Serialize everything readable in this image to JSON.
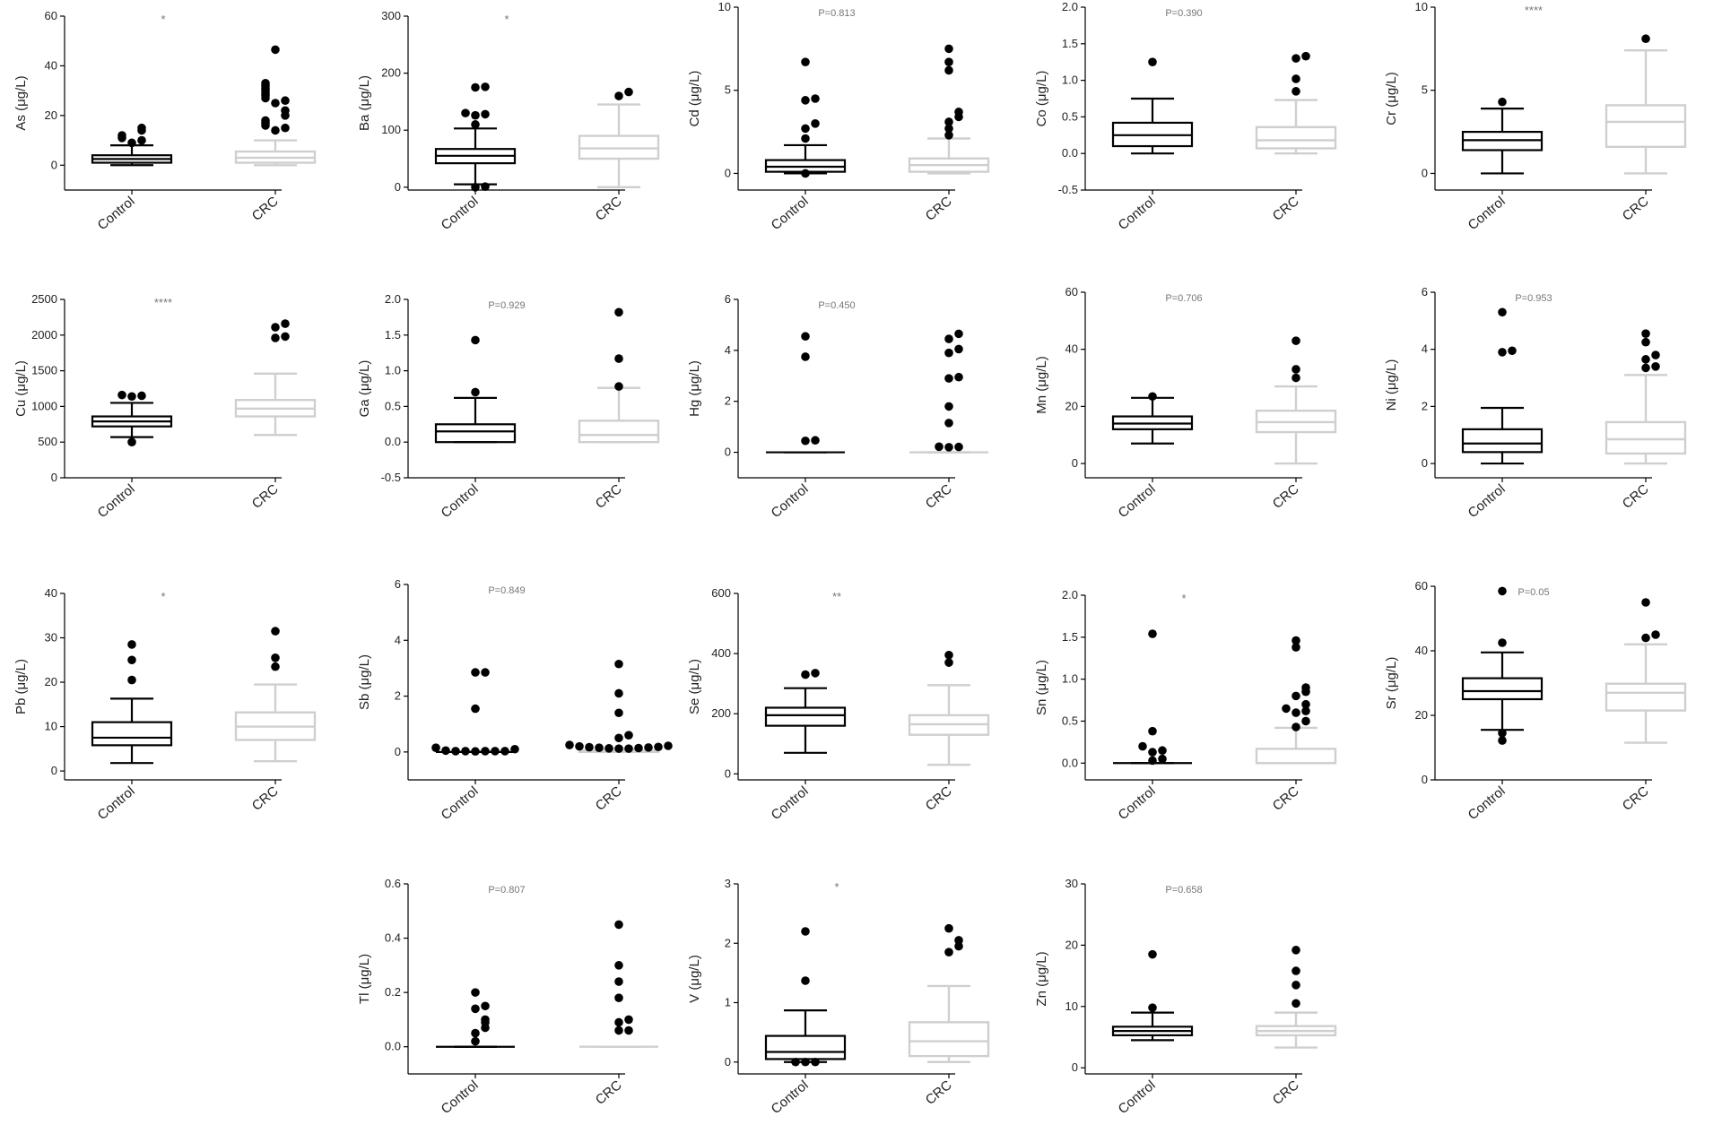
{
  "colors": {
    "control": "#000000",
    "crc": "#cfcfcf",
    "point": "#000000",
    "annotation": "#777777"
  },
  "categories": [
    "Control",
    "CRC"
  ],
  "chart_data": [
    {
      "type": "box",
      "ylabel": "As (μg/L)",
      "annotation": "*",
      "ylim": [
        -10,
        60
      ],
      "yticks": [
        0,
        20,
        40,
        60
      ],
      "boxes": [
        {
          "whisker_low": 0,
          "q1": 1,
          "median": 2.5,
          "q3": 4,
          "whisker_high": 8,
          "outliers": [
            9,
            10,
            11,
            12,
            14,
            15
          ]
        },
        {
          "whisker_low": 0,
          "q1": 1,
          "median": 3,
          "q3": 5.5,
          "whisker_high": 10,
          "outliers": [
            14,
            15,
            16,
            17,
            18,
            20,
            22,
            25,
            26,
            27,
            28,
            29,
            30,
            31,
            32,
            33,
            46.5
          ]
        }
      ]
    },
    {
      "type": "box",
      "ylabel": "Ba (μg/L)",
      "annotation": "*",
      "ylim": [
        -5,
        300
      ],
      "yticks": [
        0,
        100,
        200,
        300
      ],
      "boxes": [
        {
          "whisker_low": 5,
          "q1": 42,
          "median": 55,
          "q3": 67,
          "whisker_high": 103,
          "outliers": [
            0,
            1,
            110,
            126,
            128,
            130,
            175,
            176
          ]
        },
        {
          "whisker_low": 0,
          "q1": 50,
          "median": 68,
          "q3": 90,
          "whisker_high": 145,
          "outliers": [
            160,
            167
          ]
        }
      ]
    },
    {
      "type": "box",
      "ylabel": "Cd (μg/L)",
      "annotation": "P=0.813",
      "ylim": [
        -1,
        10
      ],
      "yticks": [
        0,
        5,
        10
      ],
      "boxes": [
        {
          "whisker_low": 0,
          "q1": 0.1,
          "median": 0.4,
          "q3": 0.8,
          "whisker_high": 1.7,
          "outliers": [
            0,
            2.1,
            2.7,
            3.0,
            4.4,
            4.5,
            6.7
          ]
        },
        {
          "whisker_low": 0,
          "q1": 0.1,
          "median": 0.5,
          "q3": 0.9,
          "whisker_high": 2.1,
          "outliers": [
            2.3,
            2.7,
            3.1,
            3.4,
            3.7,
            6.2,
            6.7,
            7.5
          ]
        }
      ]
    },
    {
      "type": "box",
      "ylabel": "Co (μg/L)",
      "annotation": "P=0.390",
      "ylim": [
        -0.5,
        2.0
      ],
      "yticks": [
        -0.5,
        0.0,
        0.5,
        1.0,
        1.5,
        2.0
      ],
      "boxes": [
        {
          "whisker_low": 0,
          "q1": 0.1,
          "median": 0.25,
          "q3": 0.42,
          "whisker_high": 0.75,
          "outliers": [
            1.25
          ]
        },
        {
          "whisker_low": 0,
          "q1": 0.07,
          "median": 0.18,
          "q3": 0.36,
          "whisker_high": 0.73,
          "outliers": [
            0.85,
            1.02,
            1.3,
            1.33
          ]
        }
      ]
    },
    {
      "type": "box",
      "ylabel": "Cr (μg/L)",
      "annotation": "****",
      "ylim": [
        -1,
        10
      ],
      "yticks": [
        0,
        5,
        10
      ],
      "boxes": [
        {
          "whisker_low": 0,
          "q1": 1.4,
          "median": 2.0,
          "q3": 2.5,
          "whisker_high": 3.9,
          "outliers": [
            4.3
          ]
        },
        {
          "whisker_low": 0,
          "q1": 1.6,
          "median": 3.1,
          "q3": 4.1,
          "whisker_high": 7.4,
          "outliers": [
            8.1
          ]
        }
      ]
    },
    {
      "type": "box",
      "ylabel": "Cu (μg/L)",
      "annotation": "****",
      "ylim": [
        0,
        2500
      ],
      "yticks": [
        0,
        500,
        1000,
        1500,
        2000,
        2500
      ],
      "boxes": [
        {
          "whisker_low": 570,
          "q1": 720,
          "median": 790,
          "q3": 860,
          "whisker_high": 1050,
          "outliers": [
            500,
            1140,
            1150,
            1160
          ]
        },
        {
          "whisker_low": 600,
          "q1": 860,
          "median": 970,
          "q3": 1090,
          "whisker_high": 1460,
          "outliers": [
            1960,
            1980,
            2110,
            2160
          ]
        }
      ]
    },
    {
      "type": "box",
      "ylabel": "Ga (μg/L)",
      "annotation": "P=0.929",
      "ylim": [
        -0.5,
        2.0
      ],
      "yticks": [
        -0.5,
        0.0,
        0.5,
        1.0,
        1.5,
        2.0
      ],
      "boxes": [
        {
          "whisker_low": 0,
          "q1": 0,
          "median": 0.15,
          "q3": 0.25,
          "whisker_high": 0.62,
          "outliers": [
            0.7,
            1.43
          ]
        },
        {
          "whisker_low": 0,
          "q1": 0,
          "median": 0.1,
          "q3": 0.3,
          "whisker_high": 0.76,
          "outliers": [
            0.78,
            1.17,
            1.82
          ]
        }
      ]
    },
    {
      "type": "box",
      "ylabel": "Hg (μg/L)",
      "annotation": "P=0.450",
      "ylim": [
        -1,
        6
      ],
      "yticks": [
        0,
        2,
        4,
        6
      ],
      "boxes": [
        {
          "whisker_low": 0,
          "q1": 0,
          "median": 0,
          "q3": 0,
          "whisker_high": 0,
          "outliers": [
            0.45,
            0.47,
            3.75,
            4.55
          ]
        },
        {
          "whisker_low": 0,
          "q1": 0,
          "median": 0,
          "q3": 0,
          "whisker_high": 0,
          "outliers": [
            0.2,
            0.21,
            0.22,
            1.15,
            1.8,
            2.9,
            2.95,
            3.9,
            4.05,
            4.45,
            4.65
          ]
        }
      ]
    },
    {
      "type": "box",
      "ylabel": "Mn (μg/L)",
      "annotation": "P=0.706",
      "ylim": [
        -5,
        60
      ],
      "yticks": [
        0,
        20,
        40,
        60
      ],
      "boxes": [
        {
          "whisker_low": 7,
          "q1": 12,
          "median": 14,
          "q3": 16.5,
          "whisker_high": 23,
          "outliers": [
            23.5
          ]
        },
        {
          "whisker_low": 0,
          "q1": 11,
          "median": 14.5,
          "q3": 18.5,
          "whisker_high": 27,
          "outliers": [
            30,
            33,
            43
          ]
        }
      ]
    },
    {
      "type": "box",
      "ylabel": "Ni (μg/L)",
      "annotation": "P=0.953",
      "ylim": [
        -0.5,
        6
      ],
      "yticks": [
        0,
        2,
        4,
        6
      ],
      "boxes": [
        {
          "whisker_low": 0,
          "q1": 0.4,
          "median": 0.7,
          "q3": 1.2,
          "whisker_high": 1.95,
          "outliers": [
            3.9,
            3.95,
            5.3
          ]
        },
        {
          "whisker_low": 0,
          "q1": 0.35,
          "median": 0.85,
          "q3": 1.45,
          "whisker_high": 3.1,
          "outliers": [
            3.35,
            3.4,
            3.65,
            3.8,
            4.25,
            4.55
          ]
        }
      ]
    },
    {
      "type": "box",
      "ylabel": "Pb (μg/L)",
      "annotation": "*",
      "ylim": [
        -2,
        40
      ],
      "yticks": [
        0,
        10,
        20,
        30,
        40
      ],
      "boxes": [
        {
          "whisker_low": 1.8,
          "q1": 5.8,
          "median": 7.5,
          "q3": 11,
          "whisker_high": 16.3,
          "outliers": [
            20.5,
            25,
            28.5
          ]
        },
        {
          "whisker_low": 2.2,
          "q1": 7,
          "median": 10,
          "q3": 13.2,
          "whisker_high": 19.5,
          "outliers": [
            23.5,
            25.5,
            31.5
          ]
        }
      ]
    },
    {
      "type": "box",
      "ylabel": "Sb (μg/L)",
      "annotation": "P=0.849",
      "ylim": [
        -1,
        6
      ],
      "yticks": [
        0,
        2,
        4,
        6
      ],
      "boxes": [
        {
          "whisker_low": 0,
          "q1": 0,
          "median": 0,
          "q3": 0,
          "whisker_high": 0,
          "outliers": [
            0.02,
            0.03,
            0.03,
            0.03,
            0.03,
            0.03,
            0.05,
            0.1,
            0.15,
            1.55,
            2.85,
            2.85
          ]
        },
        {
          "whisker_low": 0,
          "q1": 0,
          "median": 0,
          "q3": 0.05,
          "whisker_high": 0.1,
          "outliers": [
            0.12,
            0.12,
            0.13,
            0.14,
            0.15,
            0.16,
            0.17,
            0.18,
            0.2,
            0.22,
            0.25,
            0.5,
            0.6,
            1.4,
            2.1,
            3.15
          ]
        }
      ]
    },
    {
      "type": "box",
      "ylabel": "Se (μg/L)",
      "annotation": "**",
      "ylim": [
        -20,
        600
      ],
      "yticks": [
        0,
        200,
        400,
        600
      ],
      "boxes": [
        {
          "whisker_low": 70,
          "q1": 160,
          "median": 195,
          "q3": 220,
          "whisker_high": 285,
          "outliers": [
            330,
            335
          ]
        },
        {
          "whisker_low": 30,
          "q1": 130,
          "median": 165,
          "q3": 195,
          "whisker_high": 295,
          "outliers": [
            370,
            395
          ]
        }
      ]
    },
    {
      "type": "box",
      "ylabel": "Sn (μg/L)",
      "annotation": "*",
      "ylim": [
        -0.2,
        2.0
      ],
      "yticks": [
        0.0,
        0.5,
        1.0,
        1.5,
        2.0
      ],
      "boxes": [
        {
          "whisker_low": 0,
          "q1": 0,
          "median": 0,
          "q3": 0,
          "whisker_high": 0,
          "outliers": [
            0.03,
            0.05,
            0.13,
            0.15,
            0.2,
            0.38,
            1.54
          ]
        },
        {
          "whisker_low": 0,
          "q1": 0,
          "median": 0,
          "q3": 0.17,
          "whisker_high": 0.42,
          "outliers": [
            0.43,
            0.5,
            0.6,
            0.62,
            0.65,
            0.7,
            0.8,
            0.85,
            0.9,
            1.38,
            1.46
          ]
        }
      ]
    },
    {
      "type": "box",
      "ylabel": "Sr (μg/L)",
      "annotation": "P=0.05",
      "ylim": [
        0,
        60
      ],
      "yticks": [
        0,
        20,
        40,
        60
      ],
      "boxes": [
        {
          "whisker_low": 15.5,
          "q1": 25,
          "median": 27.5,
          "q3": 31.5,
          "whisker_high": 39.5,
          "outliers": [
            12.2,
            14.5,
            42.5,
            58.5
          ]
        },
        {
          "whisker_low": 11.5,
          "q1": 21.5,
          "median": 27,
          "q3": 29.8,
          "whisker_high": 42,
          "outliers": [
            44,
            45,
            55
          ]
        }
      ]
    },
    {
      "type": "box",
      "ylabel": "Tl (μg/L)",
      "annotation": "P=0.807",
      "ylim": [
        -0.1,
        0.6
      ],
      "yticks": [
        0.0,
        0.2,
        0.4,
        0.6
      ],
      "boxes": [
        {
          "whisker_low": 0,
          "q1": 0,
          "median": 0,
          "q3": 0,
          "whisker_high": 0,
          "outliers": [
            0.02,
            0.05,
            0.07,
            0.09,
            0.1,
            0.14,
            0.15,
            0.2
          ]
        },
        {
          "whisker_low": 0,
          "q1": 0,
          "median": 0,
          "q3": 0,
          "whisker_high": 0,
          "outliers": [
            0.06,
            0.06,
            0.09,
            0.1,
            0.18,
            0.24,
            0.3,
            0.45
          ]
        }
      ]
    },
    {
      "type": "box",
      "ylabel": "V (μg/L)",
      "annotation": "*",
      "ylim": [
        -0.2,
        3
      ],
      "yticks": [
        0,
        1,
        2,
        3
      ],
      "boxes": [
        {
          "whisker_low": 0,
          "q1": 0.05,
          "median": 0.17,
          "q3": 0.44,
          "whisker_high": 0.87,
          "outliers": [
            0,
            0,
            0,
            1.37,
            2.2
          ]
        },
        {
          "whisker_low": 0,
          "q1": 0.1,
          "median": 0.35,
          "q3": 0.67,
          "whisker_high": 1.28,
          "outliers": [
            1.85,
            1.95,
            2.05,
            2.25
          ]
        }
      ]
    },
    {
      "type": "box",
      "ylabel": "Zn (μg/L)",
      "annotation": "P=0.658",
      "ylim": [
        -1,
        30
      ],
      "yticks": [
        0,
        10,
        20,
        30
      ],
      "boxes": [
        {
          "whisker_low": 4.5,
          "q1": 5.3,
          "median": 6,
          "q3": 6.7,
          "whisker_high": 9,
          "outliers": [
            9.8,
            18.5
          ]
        },
        {
          "whisker_low": 3.3,
          "q1": 5.3,
          "median": 6,
          "q3": 6.8,
          "whisker_high": 9,
          "outliers": [
            10.5,
            13.5,
            15.8,
            19.2
          ]
        }
      ]
    }
  ]
}
